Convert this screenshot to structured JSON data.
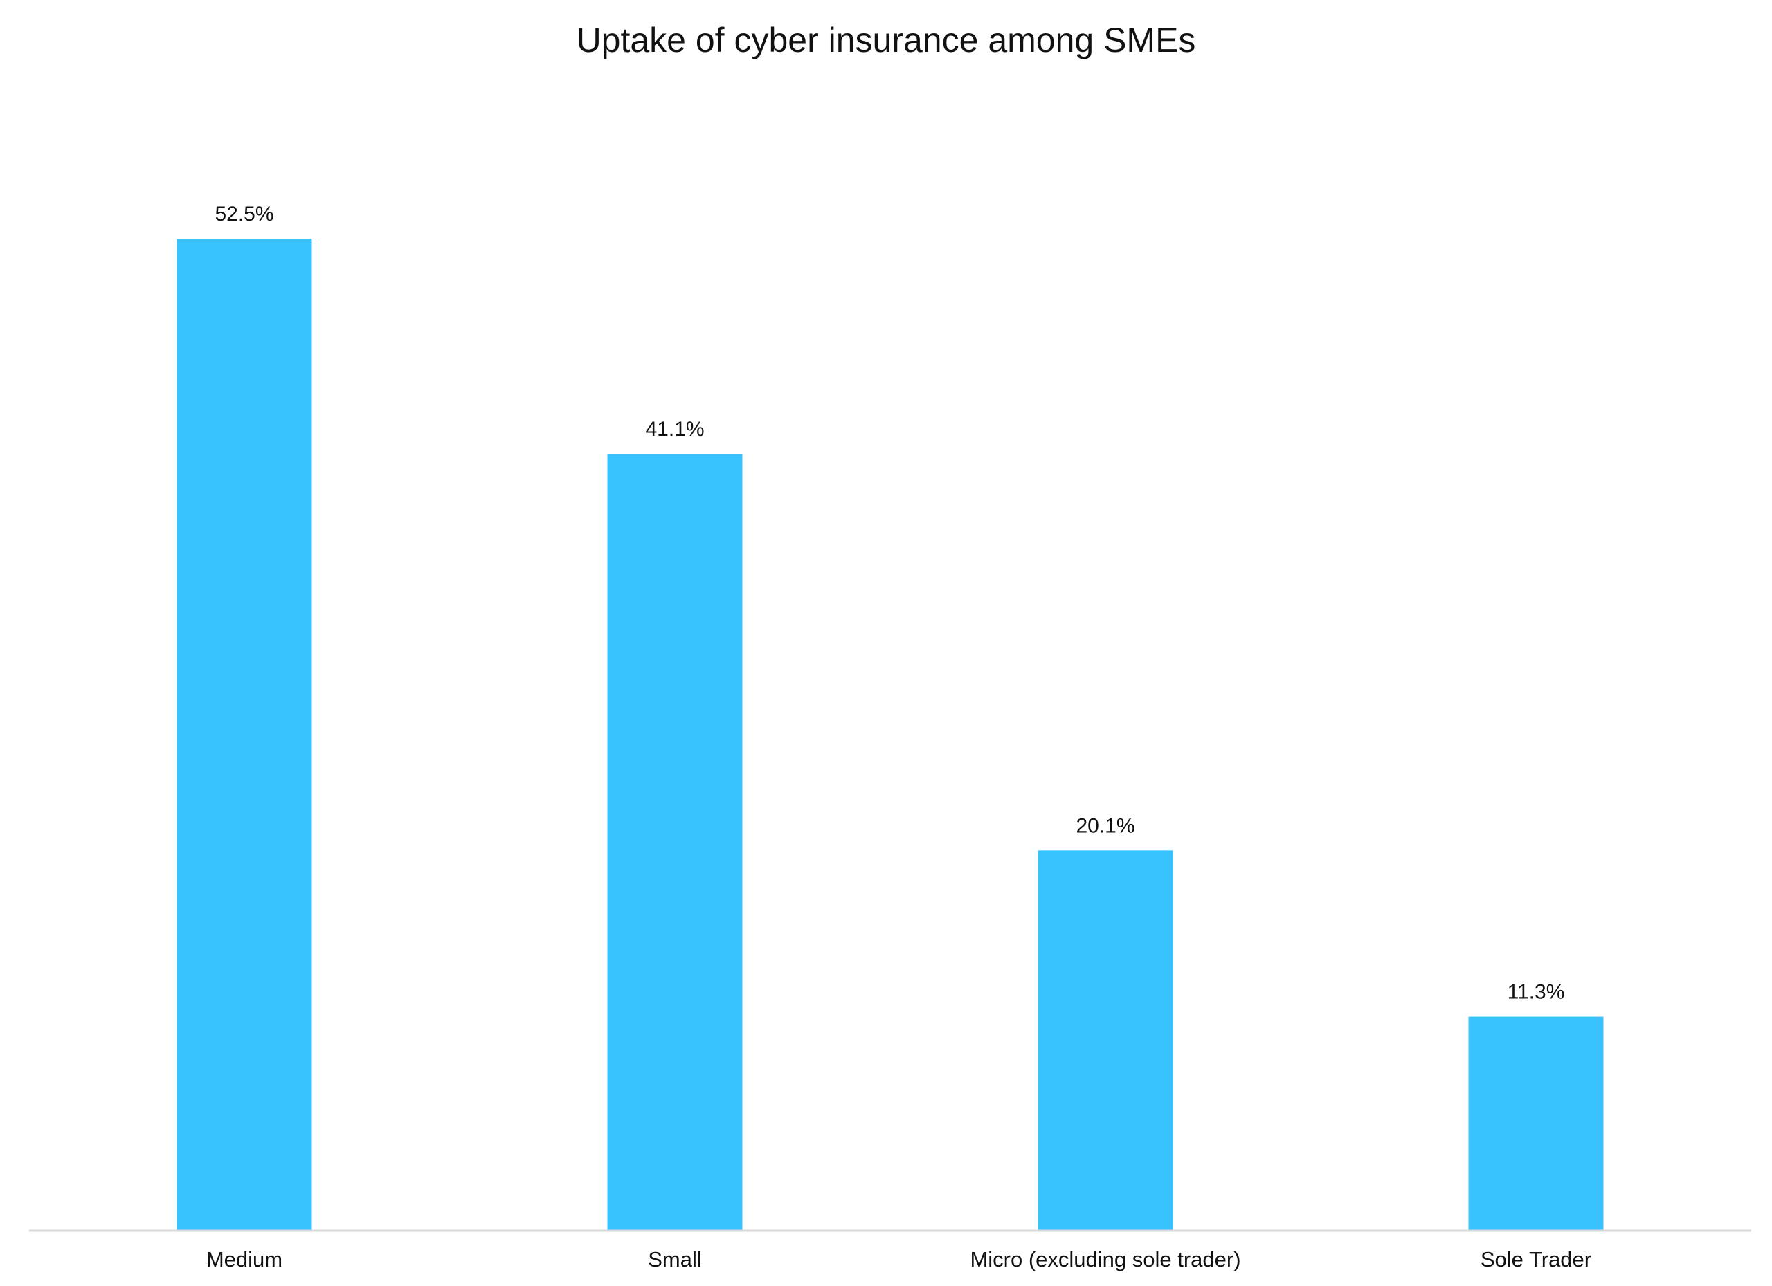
{
  "chart_data": {
    "type": "bar",
    "title": "Uptake of cyber insurance among SMEs",
    "categories": [
      "Medium",
      "Small",
      "Micro (excluding sole trader)",
      "Sole Trader"
    ],
    "values": [
      52.5,
      41.1,
      20.1,
      11.3
    ],
    "value_labels": [
      "52.5%",
      "41.1%",
      "20.1%",
      "11.3%"
    ],
    "unit": "%",
    "ylim": [
      0,
      52.5
    ],
    "grid": false,
    "legend": "none",
    "bar_color": "#38C3FF",
    "axis_color": "#D9D9D9"
  }
}
